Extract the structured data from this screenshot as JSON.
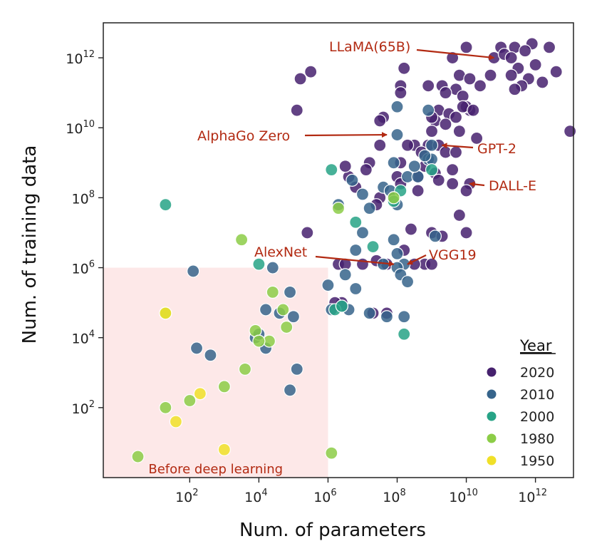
{
  "chart_data": {
    "type": "scatter",
    "xlabel": "Num. of parameters",
    "ylabel": "Num. of training data",
    "xscale": "log10",
    "yscale": "log10",
    "xlim_log10": [
      -0.5,
      13.1
    ],
    "ylim_log10": [
      0.0,
      13.0
    ],
    "x_ticks": [
      {
        "base": "10",
        "exp": "2",
        "log": 2
      },
      {
        "base": "10",
        "exp": "4",
        "log": 4
      },
      {
        "base": "10",
        "exp": "6",
        "log": 6
      },
      {
        "base": "10",
        "exp": "8",
        "log": 8
      },
      {
        "base": "10",
        "exp": "10",
        "log": 10
      },
      {
        "base": "10",
        "exp": "12",
        "log": 12
      }
    ],
    "y_ticks": [
      {
        "base": "10",
        "exp": "2",
        "log": 2
      },
      {
        "base": "10",
        "exp": "4",
        "log": 4
      },
      {
        "base": "10",
        "exp": "6",
        "log": 6
      },
      {
        "base": "10",
        "exp": "8",
        "log": 8
      },
      {
        "base": "10",
        "exp": "10",
        "log": 10
      },
      {
        "base": "10",
        "exp": "12",
        "log": 12
      }
    ],
    "region": {
      "label": "Before deep learning",
      "x_max_log10": 6,
      "y_max_log10": 6,
      "color": "#fde8e8"
    },
    "legend": {
      "title": "Year",
      "position": "bottom-right",
      "entries": [
        {
          "label": "2020",
          "color": "#46216e"
        },
        {
          "label": "2010",
          "color": "#36648b"
        },
        {
          "label": "2000",
          "color": "#27a386"
        },
        {
          "label": "1980",
          "color": "#8ccd47"
        },
        {
          "label": "1950",
          "color": "#f0e028"
        }
      ]
    },
    "annotations": [
      {
        "text": "LLaMA(65B)",
        "target": [
          10.8,
          12.0
        ]
      },
      {
        "text": "AlphaGo Zero",
        "target": [
          7.7,
          9.8
        ]
      },
      {
        "text": "GPT-2",
        "target": [
          9.3,
          9.5
        ]
      },
      {
        "text": "DALL-E",
        "target": [
          10.1,
          8.4
        ]
      },
      {
        "text": "AlexNet",
        "target": [
          7.9,
          6.1
        ]
      },
      {
        "text": "VGG19",
        "target": [
          8.3,
          6.1
        ]
      }
    ],
    "series": [
      {
        "name": "2020",
        "color": "#46216e",
        "points": [
          [
            11.9,
            12.4
          ],
          [
            11.4,
            12.3
          ],
          [
            11.7,
            12.2
          ],
          [
            11.0,
            12.3
          ],
          [
            12.4,
            12.3
          ],
          [
            10.8,
            12.0
          ],
          [
            11.1,
            12.1
          ],
          [
            11.3,
            12.0
          ],
          [
            12.0,
            11.8
          ],
          [
            12.6,
            11.6
          ],
          [
            11.5,
            11.7
          ],
          [
            11.3,
            11.5
          ],
          [
            11.8,
            11.4
          ],
          [
            12.2,
            11.3
          ],
          [
            11.6,
            11.2
          ],
          [
            11.4,
            11.1
          ],
          [
            9.6,
            12.0
          ],
          [
            10.0,
            12.3
          ],
          [
            9.8,
            11.5
          ],
          [
            10.1,
            11.4
          ],
          [
            9.7,
            11.1
          ],
          [
            9.3,
            11.2
          ],
          [
            10.4,
            11.2
          ],
          [
            10.7,
            11.5
          ],
          [
            9.9,
            10.9
          ],
          [
            9.4,
            11.0
          ],
          [
            8.9,
            11.2
          ],
          [
            9.2,
            10.5
          ],
          [
            9.5,
            10.4
          ],
          [
            9.7,
            10.3
          ],
          [
            10.1,
            10.5
          ],
          [
            9.1,
            10.2
          ],
          [
            9.4,
            10.1
          ],
          [
            9.8,
            9.9
          ],
          [
            10.3,
            9.7
          ],
          [
            9.0,
            10.3
          ],
          [
            9.0,
            9.9
          ],
          [
            10.0,
            10.6
          ],
          [
            9.9,
            10.6
          ],
          [
            10.2,
            10.5
          ],
          [
            8.9,
            9.5
          ],
          [
            8.5,
            9.5
          ],
          [
            8.7,
            9.3
          ],
          [
            9.2,
            9.5
          ],
          [
            9.4,
            9.3
          ],
          [
            9.7,
            9.3
          ],
          [
            8.3,
            9.5
          ],
          [
            8.1,
            9.0
          ],
          [
            8.6,
            8.6
          ],
          [
            8.8,
            8.9
          ],
          [
            9.6,
            8.8
          ],
          [
            9.1,
            8.7
          ],
          [
            9.2,
            8.5
          ],
          [
            9.6,
            8.4
          ],
          [
            10.1,
            8.4
          ],
          [
            10.0,
            8.2
          ],
          [
            8.0,
            8.6
          ],
          [
            8.1,
            8.4
          ],
          [
            8.6,
            8.2
          ],
          [
            7.5,
            9.5
          ],
          [
            7.2,
            9.0
          ],
          [
            7.6,
            10.3
          ],
          [
            7.5,
            10.2
          ],
          [
            7.1,
            8.8
          ],
          [
            6.6,
            8.6
          ],
          [
            6.5,
            8.9
          ],
          [
            6.8,
            8.3
          ],
          [
            7.5,
            8.0
          ],
          [
            7.4,
            7.8
          ],
          [
            9.0,
            7.0
          ],
          [
            9.8,
            7.5
          ],
          [
            10.0,
            7.0
          ],
          [
            9.3,
            6.9
          ],
          [
            8.4,
            7.1
          ],
          [
            8.2,
            6.5
          ],
          [
            7.7,
            6.1
          ],
          [
            7.4,
            6.2
          ],
          [
            8.8,
            6.1
          ],
          [
            9.0,
            6.1
          ],
          [
            8.5,
            6.1
          ],
          [
            6.3,
            6.1
          ],
          [
            6.5,
            6.1
          ],
          [
            6.4,
            5.0
          ],
          [
            6.2,
            5.0
          ],
          [
            7.0,
            6.1
          ],
          [
            7.3,
            4.7
          ],
          [
            13.0,
            9.9
          ],
          [
            8.2,
            11.7
          ],
          [
            8.1,
            11.2
          ],
          [
            5.2,
            11.4
          ],
          [
            5.5,
            11.6
          ],
          [
            5.1,
            10.5
          ],
          [
            5.4,
            7.0
          ],
          [
            7.7,
            4.7
          ],
          [
            8.1,
            11.0
          ]
        ]
      },
      {
        "name": "2010",
        "color": "#36648b",
        "points": [
          [
            8.0,
            10.6
          ],
          [
            8.0,
            9.8
          ],
          [
            7.9,
            9.0
          ],
          [
            7.6,
            8.3
          ],
          [
            7.8,
            8.2
          ],
          [
            7.9,
            8.0
          ],
          [
            8.3,
            8.6
          ],
          [
            8.6,
            8.6
          ],
          [
            8.9,
            9.1
          ],
          [
            9.0,
            9.1
          ],
          [
            9.0,
            9.5
          ],
          [
            8.8,
            9.2
          ],
          [
            8.5,
            8.9
          ],
          [
            8.0,
            7.8
          ],
          [
            7.0,
            8.1
          ],
          [
            7.2,
            7.7
          ],
          [
            6.3,
            7.8
          ],
          [
            6.7,
            8.5
          ],
          [
            7.0,
            7.0
          ],
          [
            7.9,
            6.8
          ],
          [
            8.0,
            6.4
          ],
          [
            8.2,
            6.1
          ],
          [
            8.0,
            6.0
          ],
          [
            7.6,
            6.1
          ],
          [
            8.1,
            5.8
          ],
          [
            8.3,
            5.6
          ],
          [
            9.1,
            6.9
          ],
          [
            6.8,
            5.4
          ],
          [
            6.6,
            4.8
          ],
          [
            6.1,
            4.8
          ],
          [
            6.4,
            4.9
          ],
          [
            7.2,
            4.7
          ],
          [
            7.7,
            4.6
          ],
          [
            8.2,
            4.6
          ],
          [
            6.8,
            6.5
          ],
          [
            6.0,
            5.5
          ],
          [
            6.5,
            5.8
          ],
          [
            4.2,
            4.8
          ],
          [
            4.4,
            6.0
          ],
          [
            2.1,
            5.9
          ],
          [
            3.9,
            4.0
          ],
          [
            4.2,
            3.7
          ],
          [
            4.0,
            4.1
          ],
          [
            5.0,
            4.6
          ],
          [
            4.9,
            5.3
          ],
          [
            4.6,
            4.7
          ],
          [
            5.1,
            3.1
          ],
          [
            4.9,
            2.5
          ],
          [
            2.2,
            3.7
          ],
          [
            2.6,
            3.5
          ],
          [
            8.9,
            10.5
          ]
        ]
      },
      {
        "name": "2000",
        "color": "#27a386",
        "points": [
          [
            1.3,
            7.8
          ],
          [
            4.0,
            6.1
          ],
          [
            6.1,
            8.8
          ],
          [
            7.9,
            7.9
          ],
          [
            7.3,
            6.6
          ],
          [
            6.8,
            7.3
          ],
          [
            6.2,
            4.8
          ],
          [
            8.2,
            4.1
          ],
          [
            9.0,
            8.8
          ],
          [
            6.4,
            4.9
          ],
          [
            8.1,
            8.2
          ]
        ]
      },
      {
        "name": "1980",
        "color": "#8ccd47",
        "points": [
          [
            1.3,
            4.7
          ],
          [
            4.4,
            5.3
          ],
          [
            3.5,
            6.8
          ],
          [
            3.9,
            4.2
          ],
          [
            4.3,
            3.9
          ],
          [
            4.8,
            4.3
          ],
          [
            2.0,
            2.2
          ],
          [
            3.0,
            2.6
          ],
          [
            3.6,
            3.1
          ],
          [
            0.5,
            0.6
          ],
          [
            6.1,
            0.7
          ],
          [
            6.3,
            7.7
          ],
          [
            7.9,
            8.0
          ],
          [
            4.7,
            4.8
          ],
          [
            4.0,
            3.9
          ],
          [
            1.3,
            2.0
          ]
        ]
      },
      {
        "name": "1950",
        "color": "#f0e028",
        "points": [
          [
            1.6,
            1.6
          ],
          [
            2.3,
            2.4
          ],
          [
            3.0,
            0.8
          ],
          [
            1.3,
            4.7
          ]
        ]
      }
    ]
  }
}
